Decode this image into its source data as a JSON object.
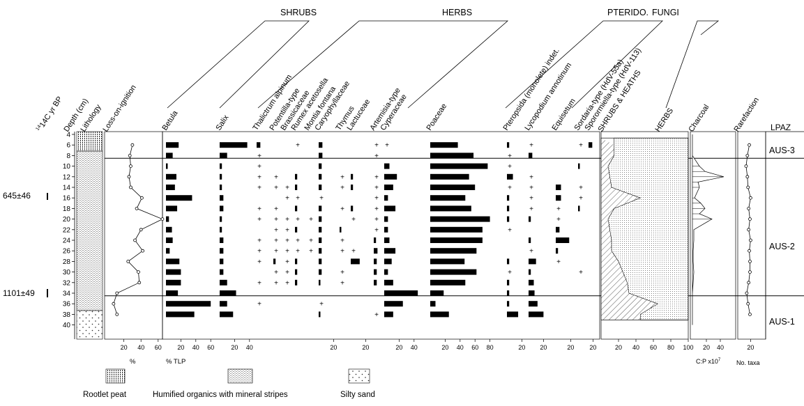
{
  "chart_data": {
    "type": "bar",
    "groups": [
      "SHRUBS",
      "HERBS",
      "PTERIDO.",
      "FUNGI"
    ],
    "depth": {
      "label": "Depth (cm)",
      "ticks": [
        4,
        6,
        8,
        10,
        12,
        14,
        16,
        18,
        20,
        22,
        24,
        26,
        28,
        30,
        32,
        34,
        36,
        38,
        40
      ]
    },
    "age_label": "14C yr BP",
    "ages": [
      {
        "label": "645±46",
        "depth": 15
      },
      {
        "label": "1101±49",
        "depth": 31
      }
    ],
    "lithology_label": "Lithology",
    "loi": {
      "label": "Loss-on-ignition",
      "depths": [
        6,
        8,
        10,
        12,
        14,
        16,
        18,
        20,
        22,
        24,
        26,
        28,
        30,
        32,
        34,
        36,
        38
      ],
      "values": [
        30,
        27,
        28,
        26,
        28,
        41,
        35,
        65,
        40,
        33,
        42,
        25,
        37,
        38,
        12,
        8,
        12
      ]
    },
    "taxa": [
      {
        "name": "Betula",
        "ticks": [
          20,
          40,
          60
        ],
        "vals": [
          17,
          9,
          2,
          14,
          12,
          35,
          15,
          4,
          8,
          9,
          5,
          18,
          20,
          20,
          16,
          60,
          38
        ]
      },
      {
        "name": "Salix",
        "ticks": [
          20,
          40
        ],
        "vals": [
          37,
          10,
          3,
          3,
          3,
          5,
          5,
          3,
          3,
          5,
          5,
          5,
          5,
          10,
          22,
          10,
          18
        ]
      },
      {
        "name": "Thalictrum alpinum",
        "ticks": [],
        "vals": [
          5,
          "+",
          "+",
          "+",
          "+",
          0,
          "+",
          "+",
          0,
          "+",
          "+",
          "+",
          0,
          "+",
          0,
          "+",
          0
        ]
      },
      {
        "name": "Potentilla-type",
        "ticks": [],
        "vals": [
          0,
          0,
          0,
          "+",
          "+",
          0,
          "+",
          "+",
          "+",
          "+",
          "+",
          3,
          "+",
          "+",
          0,
          0,
          0
        ]
      },
      {
        "name": "Brassicaceae",
        "ticks": [],
        "vals": [
          0,
          0,
          0,
          0,
          "+",
          "+",
          0,
          "+",
          "+",
          "+",
          "+",
          "+",
          "+",
          "+",
          0,
          0,
          0
        ]
      },
      {
        "name": "Rumex acetosella",
        "ticks": [],
        "vals": [
          "+",
          0,
          0,
          3,
          3,
          "+",
          3,
          "+",
          3,
          "+",
          "+",
          3,
          3,
          3,
          0,
          0,
          0
        ]
      },
      {
        "name": "Montia fontana",
        "ticks": [],
        "vals": [
          0,
          0,
          0,
          0,
          0,
          0,
          0,
          "+",
          0,
          "+",
          "+",
          0,
          0,
          0,
          0,
          0,
          0
        ]
      },
      {
        "name": "Caryophyllaceae",
        "ticks": [
          20
        ],
        "vals": [
          5,
          5,
          4,
          4,
          4,
          "+",
          4,
          4,
          4,
          4,
          4,
          4,
          4,
          2,
          0,
          "+",
          2
        ]
      },
      {
        "name": "Thymus",
        "ticks": [],
        "vals": [
          0,
          0,
          0,
          "+",
          "+",
          0,
          "+",
          0,
          2,
          "+",
          "+",
          0,
          "+",
          "+",
          0,
          0,
          0
        ]
      },
      {
        "name": "Lactuceae",
        "ticks": [
          20
        ],
        "vals": [
          0,
          0,
          0,
          3,
          3,
          0,
          3,
          "+",
          0,
          0,
          "+",
          12,
          0,
          0,
          0,
          0,
          0
        ]
      },
      {
        "name": "Artemisia-type",
        "ticks": [],
        "vals": [
          "+",
          "+",
          0,
          "+",
          "+",
          "+",
          "+",
          "+",
          "+",
          3,
          5,
          4,
          4,
          4,
          0,
          0,
          "+"
        ]
      },
      {
        "name": "Cyperaceae",
        "ticks": [
          20,
          40
        ],
        "vals": [
          "+",
          0,
          7,
          17,
          12,
          5,
          15,
          5,
          5,
          7,
          15,
          10,
          5,
          12,
          45,
          25,
          12
        ]
      },
      {
        "name": "Poaceae",
        "ticks": [
          20,
          40,
          60,
          80
        ],
        "vals": [
          37,
          58,
          77,
          52,
          60,
          47,
          55,
          80,
          70,
          70,
          62,
          46,
          62,
          47,
          18,
          7,
          25
        ]
      },
      {
        "name": "Pteropsida (monolete) indet.",
        "ticks": [
          20
        ],
        "vals": [
          3,
          "+",
          "+",
          8,
          "+",
          3,
          3,
          3,
          "+",
          0,
          0,
          3,
          "+",
          3,
          3,
          3,
          15
        ]
      },
      {
        "name": "Lycopodium annotinum",
        "ticks": [
          20
        ],
        "vals": [
          "+",
          5,
          0,
          "+",
          "+",
          "+",
          "+",
          3,
          0,
          3,
          "+",
          10,
          3,
          7,
          8,
          12,
          20
        ]
      },
      {
        "name": "Equisetum",
        "ticks": [
          20
        ],
        "vals": [
          0,
          0,
          0,
          0,
          7,
          7,
          "+",
          "+",
          5,
          18,
          3,
          "+",
          0,
          0,
          0,
          0,
          0
        ]
      },
      {
        "name": "Sordaria-type (HdV-55a)",
        "ticks": [
          20
        ],
        "vals": [
          "+",
          0,
          2,
          0,
          "+",
          "+",
          2,
          0,
          0,
          0,
          0,
          0,
          "+",
          0,
          0,
          0,
          0
        ]
      },
      {
        "name": "Sporormiella-type (HdV-113)",
        "ticks": [],
        "vals": [
          5,
          0,
          0,
          0,
          0,
          0,
          0,
          0,
          0,
          0,
          0,
          0,
          0,
          0,
          0,
          0,
          0
        ]
      }
    ],
    "summary": {
      "label_shrubs": "SHRUBS & HEATHS",
      "label_herbs": "HERBS",
      "ticks": [
        20,
        40,
        60,
        80,
        100
      ],
      "depths": [
        6,
        8,
        10,
        12,
        14,
        16,
        18,
        20,
        22,
        24,
        26,
        28,
        30,
        32,
        34,
        36,
        38
      ],
      "shrubs": [
        15,
        15,
        8,
        10,
        12,
        45,
        15,
        8,
        10,
        12,
        12,
        20,
        25,
        30,
        32,
        65,
        45
      ]
    },
    "charcoal": {
      "label": "Charcoal",
      "ticks": [
        20,
        40
      ],
      "depths": [
        6,
        8,
        10,
        11,
        12,
        13,
        14,
        16,
        17,
        18,
        19,
        20,
        22,
        24,
        26,
        28,
        30,
        32,
        34,
        36,
        38
      ],
      "values": [
        0,
        0,
        10,
        18,
        45,
        8,
        10,
        3,
        12,
        18,
        10,
        28,
        2,
        2,
        1,
        1,
        2,
        1,
        0,
        0,
        0
      ]
    },
    "rarefaction": {
      "label": "Rarefaction",
      "ticks": [
        20
      ],
      "depths": [
        6,
        8,
        10,
        12,
        14,
        16,
        18,
        20,
        22,
        24,
        26,
        28,
        30,
        32,
        34,
        36,
        38
      ],
      "values": [
        18,
        15,
        13,
        15,
        16,
        20,
        17,
        19,
        17,
        20,
        18,
        19,
        19,
        17,
        14,
        16,
        19
      ]
    },
    "zones": [
      {
        "name": "AUS-3",
        "from": 4,
        "to": 8.5
      },
      {
        "name": "AUS-2",
        "from": 8.5,
        "to": 34.5
      },
      {
        "name": "AUS-1",
        "from": 34.5,
        "to": 40
      }
    ],
    "lpaz_label": "LPAZ",
    "units": {
      "loi": "%",
      "pollen": "% TLP",
      "charcoal": "C:P x10",
      "charcoal_exp": "7",
      "rarefaction": "No. taxa"
    },
    "legend": [
      {
        "label": "Rootlet peat",
        "pattern": "rootlet"
      },
      {
        "label": "Humified organics with mineral stripes",
        "pattern": "humified"
      },
      {
        "label": "Silty sand",
        "pattern": "sand"
      }
    ]
  }
}
